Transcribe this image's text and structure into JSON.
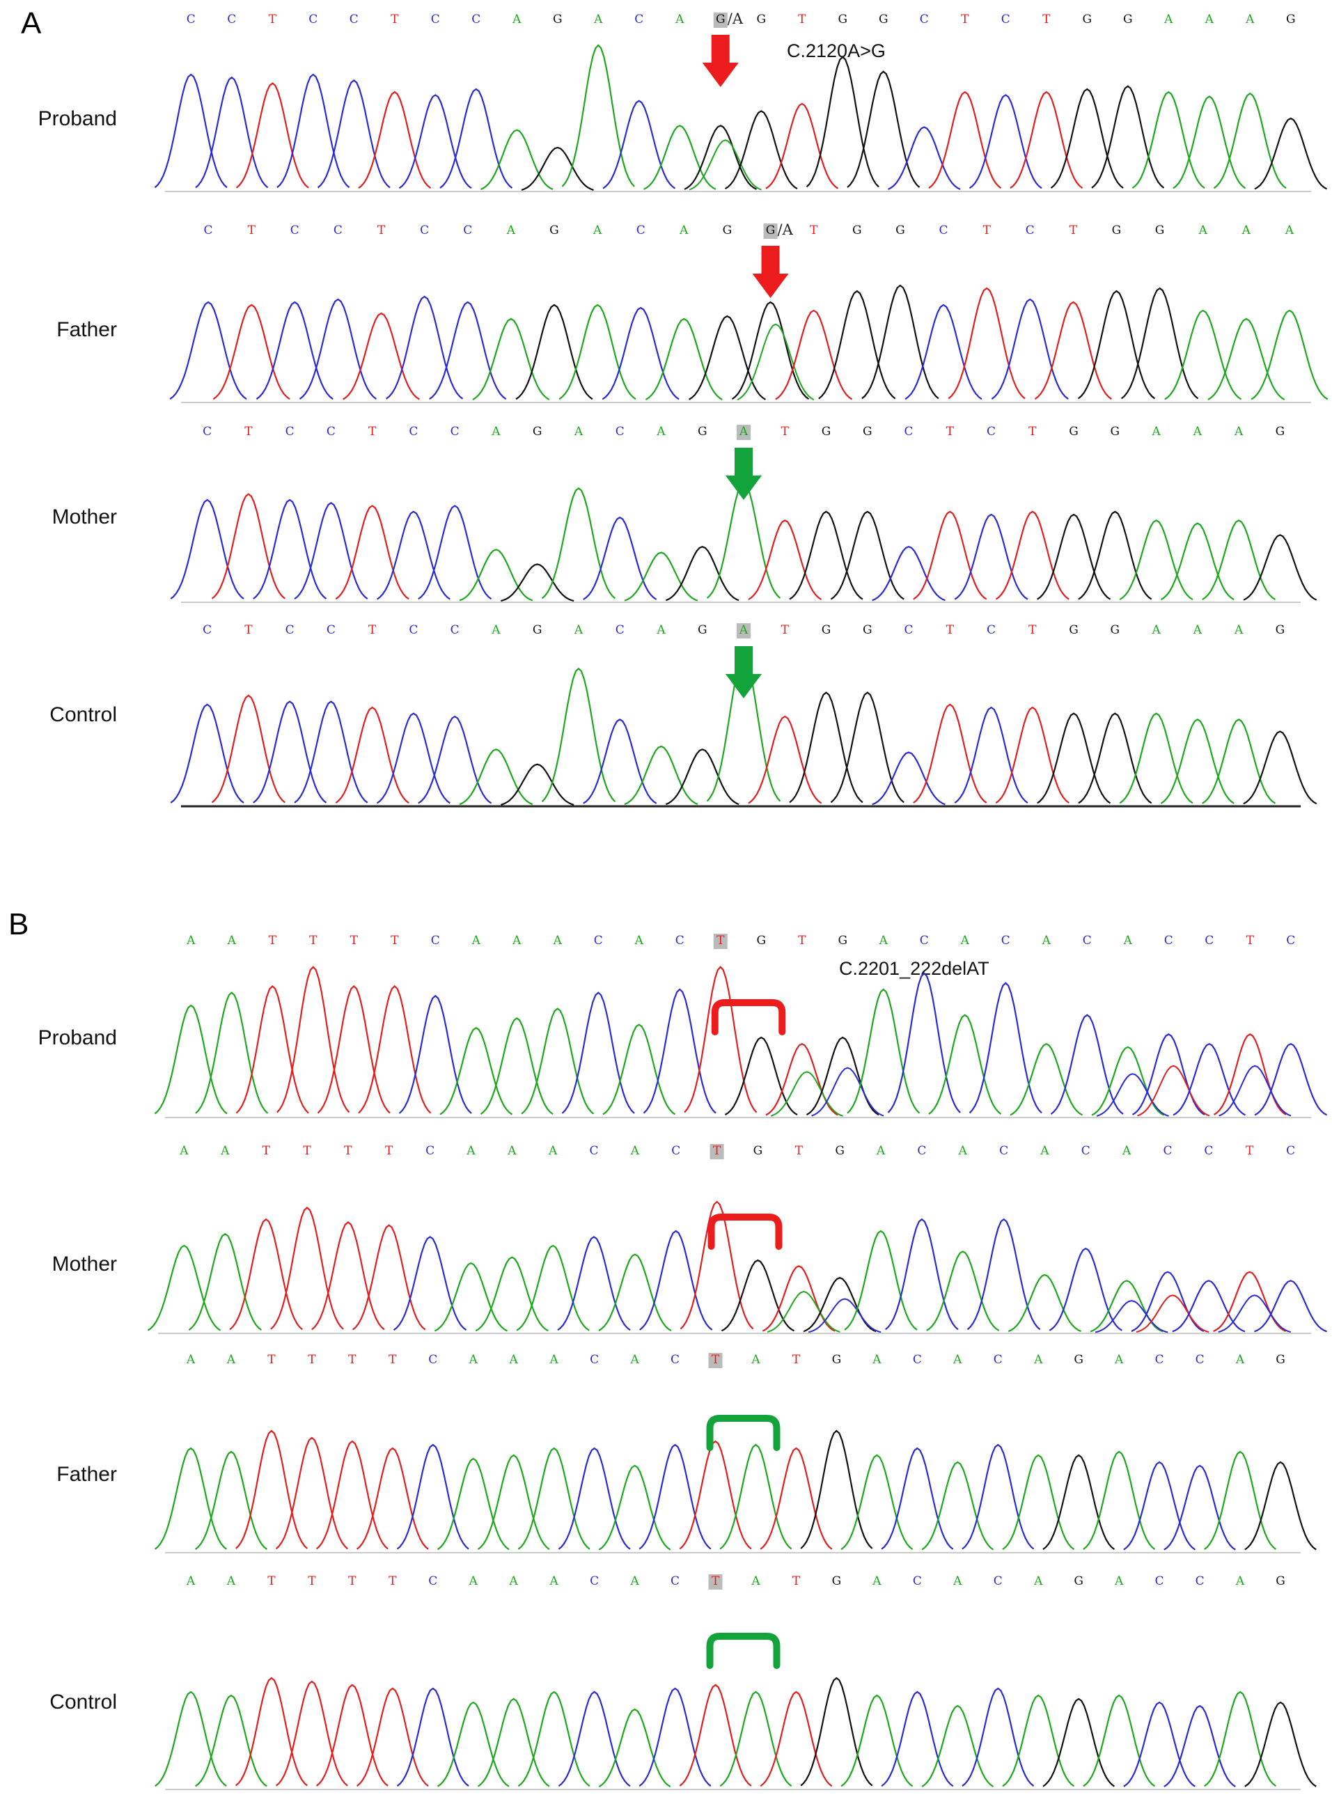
{
  "colors": {
    "A": "#1ea81e",
    "C": "#2a2ad6",
    "G": "#111111",
    "T": "#e11f1f",
    "mutant": "#ec1c1c",
    "wildtype": "#12a33a"
  },
  "panels": [
    {
      "letter": "A",
      "mutation_label": "C.2120A>G",
      "highlight_index": 13,
      "marker": "arrow",
      "tracks": [
        {
          "name": "Proband",
          "seq": [
            "C",
            "C",
            "T",
            "C",
            "C",
            "T",
            "C",
            "C",
            "A",
            "G",
            "A",
            "C",
            "A",
            "G",
            "G",
            "T",
            "G",
            "G",
            "C",
            "T",
            "C",
            "T",
            "G",
            "G",
            "A",
            "A",
            "A",
            "G"
          ],
          "het_text": "/A",
          "type": "mutant",
          "heights": [
            0.8,
            0.78,
            0.74,
            0.8,
            0.76,
            0.68,
            0.66,
            0.7,
            0.42,
            0.3,
            1.0,
            0.62,
            0.45,
            0.45,
            0.55,
            0.6,
            0.92,
            0.82,
            0.44,
            0.68,
            0.66,
            0.68,
            0.7,
            0.72,
            0.68,
            0.65,
            0.67,
            0.5
          ]
        },
        {
          "name": "Father",
          "seq": [
            "C",
            "T",
            "C",
            "C",
            "T",
            "C",
            "C",
            "A",
            "G",
            "A",
            "C",
            "A",
            "G",
            "G",
            "T",
            "G",
            "G",
            "C",
            "T",
            "C",
            "T",
            "G",
            "G",
            "A",
            "A",
            "A"
          ],
          "het_text": "/A",
          "type": "mutant",
          "heights": [
            0.72,
            0.7,
            0.72,
            0.74,
            0.64,
            0.76,
            0.72,
            0.6,
            0.7,
            0.7,
            0.68,
            0.6,
            0.62,
            0.72,
            0.66,
            0.8,
            0.84,
            0.7,
            0.82,
            0.74,
            0.72,
            0.8,
            0.82,
            0.66,
            0.6,
            0.66
          ]
        },
        {
          "name": "Mother",
          "seq": [
            "C",
            "T",
            "C",
            "C",
            "T",
            "C",
            "C",
            "A",
            "G",
            "A",
            "C",
            "A",
            "G",
            "A",
            "T",
            "G",
            "G",
            "C",
            "T",
            "C",
            "T",
            "G",
            "G",
            "A",
            "A",
            "A",
            "G"
          ],
          "het_text": "",
          "type": "wildtype",
          "heights": [
            0.7,
            0.74,
            0.7,
            0.68,
            0.66,
            0.62,
            0.66,
            0.36,
            0.26,
            0.78,
            0.58,
            0.34,
            0.38,
            0.82,
            0.56,
            0.62,
            0.62,
            0.38,
            0.62,
            0.6,
            0.62,
            0.6,
            0.62,
            0.56,
            0.54,
            0.56,
            0.46
          ]
        },
        {
          "name": "Control",
          "seq": [
            "C",
            "T",
            "C",
            "C",
            "T",
            "C",
            "C",
            "A",
            "G",
            "A",
            "C",
            "A",
            "G",
            "A",
            "T",
            "G",
            "G",
            "C",
            "T",
            "C",
            "T",
            "G",
            "G",
            "A",
            "A",
            "A",
            "G"
          ],
          "het_text": "",
          "type": "wildtype",
          "heights": [
            0.68,
            0.74,
            0.7,
            0.7,
            0.66,
            0.62,
            0.6,
            0.38,
            0.28,
            0.92,
            0.58,
            0.4,
            0.38,
            1.0,
            0.6,
            0.76,
            0.76,
            0.36,
            0.68,
            0.66,
            0.66,
            0.62,
            0.62,
            0.62,
            0.58,
            0.58,
            0.5
          ]
        }
      ]
    },
    {
      "letter": "B",
      "mutation_label": "C.2201_222delAT",
      "highlight_index": 13,
      "marker": "bracket",
      "tracks": [
        {
          "name": "Proband",
          "seq": [
            "A",
            "A",
            "T",
            "T",
            "T",
            "T",
            "C",
            "A",
            "A",
            "A",
            "C",
            "A",
            "C",
            "T",
            "G",
            "T",
            "G",
            "A",
            "C",
            "A",
            "C",
            "A",
            "C",
            "A",
            "C",
            "C",
            "T",
            "C"
          ],
          "het_text": "",
          "type": "mutant",
          "heights": [
            0.7,
            0.78,
            0.82,
            0.94,
            0.82,
            0.82,
            0.76,
            0.56,
            0.62,
            0.68,
            0.78,
            0.58,
            0.8,
            0.94,
            0.5,
            0.46,
            0.5,
            0.8,
            0.9,
            0.64,
            0.84,
            0.46,
            0.64,
            0.44,
            0.52,
            0.46,
            0.52,
            0.46
          ]
        },
        {
          "name": "Mother",
          "seq": [
            "A",
            "A",
            "T",
            "T",
            "T",
            "T",
            "C",
            "A",
            "A",
            "A",
            "C",
            "A",
            "C",
            "T",
            "G",
            "T",
            "G",
            "A",
            "C",
            "A",
            "C",
            "A",
            "C",
            "A",
            "C",
            "C",
            "T",
            "C"
          ],
          "het_text": "",
          "type": "mutant",
          "heights": [
            0.6,
            0.68,
            0.78,
            0.86,
            0.76,
            0.74,
            0.66,
            0.48,
            0.52,
            0.6,
            0.66,
            0.54,
            0.7,
            0.9,
            0.5,
            0.46,
            0.38,
            0.7,
            0.78,
            0.56,
            0.78,
            0.4,
            0.58,
            0.36,
            0.42,
            0.36,
            0.42,
            0.36
          ]
        },
        {
          "name": "Father",
          "seq": [
            "A",
            "A",
            "T",
            "T",
            "T",
            "T",
            "C",
            "A",
            "A",
            "A",
            "C",
            "A",
            "C",
            "T",
            "A",
            "T",
            "G",
            "A",
            "C",
            "A",
            "C",
            "A",
            "G",
            "A",
            "C",
            "C",
            "A",
            "G"
          ],
          "het_text": "",
          "type": "wildtype",
          "heights": [
            0.6,
            0.58,
            0.7,
            0.66,
            0.64,
            0.6,
            0.62,
            0.54,
            0.56,
            0.6,
            0.6,
            0.5,
            0.62,
            0.64,
            0.62,
            0.6,
            0.7,
            0.56,
            0.6,
            0.52,
            0.62,
            0.56,
            0.56,
            0.58,
            0.52,
            0.5,
            0.58,
            0.52
          ]
        },
        {
          "name": "Control",
          "seq": [
            "A",
            "A",
            "T",
            "T",
            "T",
            "T",
            "C",
            "A",
            "A",
            "A",
            "C",
            "A",
            "C",
            "T",
            "A",
            "T",
            "G",
            "A",
            "C",
            "A",
            "C",
            "A",
            "G",
            "A",
            "C",
            "C",
            "A",
            "G"
          ],
          "het_text": "",
          "type": "wildtype",
          "heights": [
            0.56,
            0.54,
            0.64,
            0.62,
            0.6,
            0.58,
            0.58,
            0.5,
            0.52,
            0.56,
            0.56,
            0.46,
            0.58,
            0.6,
            0.56,
            0.56,
            0.64,
            0.54,
            0.56,
            0.48,
            0.58,
            0.54,
            0.52,
            0.54,
            0.5,
            0.48,
            0.56,
            0.5
          ]
        }
      ]
    }
  ]
}
